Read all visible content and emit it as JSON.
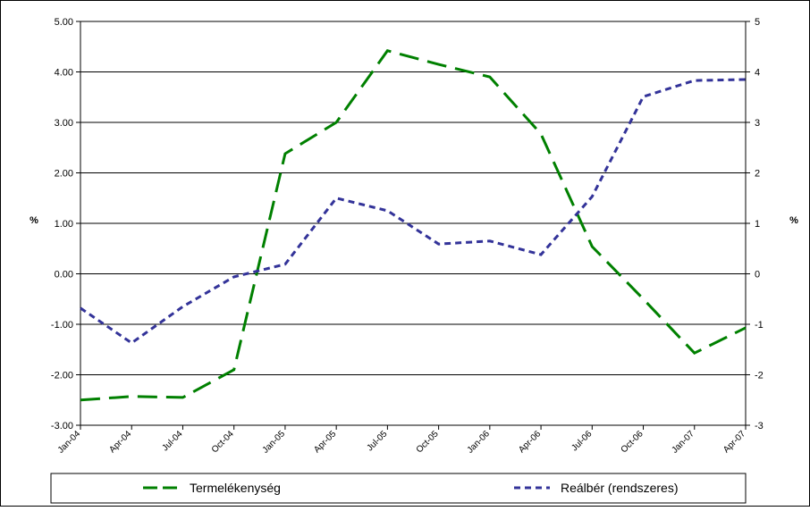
{
  "chart_data": {
    "type": "line",
    "categories": [
      "Jan-04",
      "Apr-04",
      "Jul-04",
      "Oct-04",
      "Jan-05",
      "Apr-05",
      "Jul-05",
      "Oct-05",
      "Jan-06",
      "Apr-06",
      "Jul-06",
      "Oct-06",
      "Jan-07",
      "Apr-07"
    ],
    "series": [
      {
        "name": "Termelékenység",
        "color": "#008000",
        "values": [
          -2.5,
          -2.43,
          -2.45,
          -1.9,
          2.38,
          3.0,
          4.42,
          4.15,
          3.9,
          2.77,
          0.54,
          -0.5,
          -1.57,
          -1.07
        ]
      },
      {
        "name": "Reálbér (rendszeres)",
        "color": "#333399",
        "axis": "y2",
        "values": [
          -0.68,
          -1.37,
          -0.65,
          -0.06,
          0.19,
          1.5,
          1.25,
          0.59,
          0.65,
          0.38,
          1.53,
          3.51,
          3.83,
          3.85
        ]
      }
    ],
    "ylabel": "%",
    "y2label": "%",
    "ylim": [
      -3,
      5
    ],
    "yticks": [
      {
        "value": -3,
        "label": "-3.00"
      },
      {
        "value": -2,
        "label": "-2.00"
      },
      {
        "value": -1,
        "label": "-1.00"
      },
      {
        "value": 0,
        "label": "0.00"
      },
      {
        "value": 1,
        "label": "1.00"
      },
      {
        "value": 2,
        "label": "2.00"
      },
      {
        "value": 3,
        "label": "3.00"
      },
      {
        "value": 4,
        "label": "4.00"
      },
      {
        "value": 5,
        "label": "5.00"
      }
    ],
    "y2lim": [
      -3,
      5
    ],
    "y2ticks": [
      -3,
      -2,
      -1,
      0,
      1,
      2,
      3,
      4,
      5
    ],
    "grid": true,
    "legend": "bottom"
  }
}
